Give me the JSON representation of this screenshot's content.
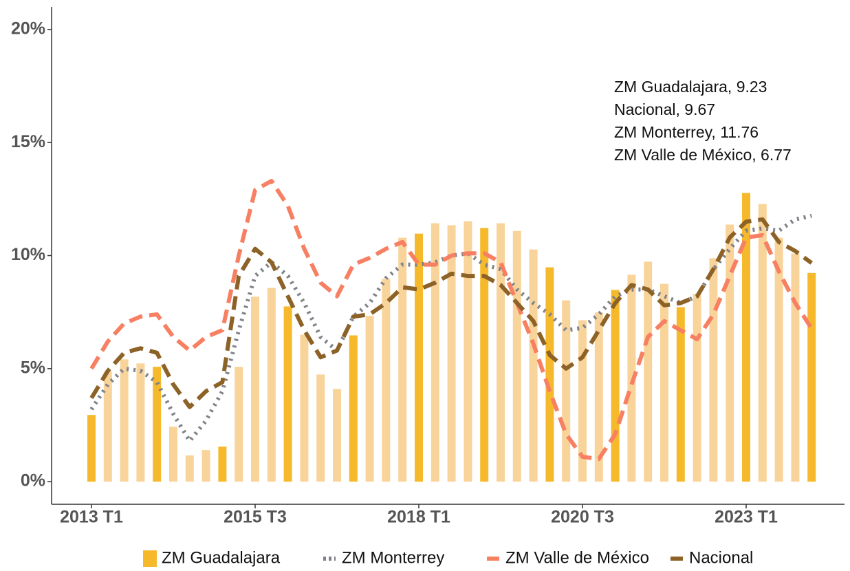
{
  "chart_data": {
    "type": "bar_line",
    "categories": [
      "2013 T1",
      null,
      null,
      null,
      null,
      null,
      null,
      null,
      null,
      null,
      "2015 T3",
      null,
      null,
      null,
      null,
      null,
      null,
      null,
      null,
      null,
      "2018 T1",
      null,
      null,
      null,
      null,
      null,
      null,
      null,
      null,
      null,
      "2020 T3",
      null,
      null,
      null,
      null,
      null,
      null,
      null,
      null,
      null,
      "2023 T1",
      null,
      null,
      null,
      null
    ],
    "series": [
      {
        "name": "ZM Guadalajara",
        "type": "bar",
        "color": "#f6b92b",
        "light_color": "#f9d49a",
        "values": [
          2.95,
          4.86,
          5.41,
          5.23,
          5.08,
          2.43,
          1.16,
          1.4,
          1.55,
          5.08,
          8.18,
          8.57,
          7.75,
          6.5,
          4.74,
          4.1,
          6.47,
          7.33,
          8.97,
          10.79,
          10.97,
          11.43,
          11.34,
          11.52,
          11.22,
          11.43,
          11.09,
          10.27,
          9.48,
          8.02,
          7.14,
          7.48,
          8.48,
          9.15,
          9.73,
          8.75,
          7.72,
          8.3,
          9.88,
          11.37,
          12.77,
          12.28,
          10.79,
          10.09,
          9.23
        ]
      },
      {
        "name": "ZM Monterrey",
        "type": "line",
        "style": "dotted",
        "color": "#7f8389",
        "values": [
          3.2,
          4.3,
          5.0,
          4.9,
          4.4,
          3.0,
          1.8,
          2.7,
          4.0,
          6.7,
          9.1,
          9.7,
          9.1,
          7.9,
          6.4,
          5.8,
          7.3,
          7.9,
          9.0,
          9.6,
          9.6,
          9.7,
          10.0,
          10.1,
          9.6,
          9.4,
          8.5,
          7.9,
          7.4,
          6.7,
          6.8,
          7.4,
          8.2,
          8.5,
          8.5,
          8.2,
          7.9,
          8.2,
          9.4,
          10.3,
          11.1,
          11.2,
          11.1,
          11.6,
          11.76
        ]
      },
      {
        "name": "ZM Valle de México",
        "type": "line",
        "style": "dashed",
        "color": "#f77f62",
        "values": [
          5.0,
          6.2,
          7.0,
          7.3,
          7.4,
          6.4,
          5.8,
          6.4,
          6.7,
          10.0,
          12.9,
          13.3,
          12.2,
          10.3,
          8.8,
          8.2,
          9.6,
          9.9,
          10.3,
          10.6,
          9.6,
          9.6,
          10.0,
          10.1,
          10.1,
          9.7,
          7.9,
          6.1,
          4.0,
          2.1,
          1.1,
          1.0,
          2.1,
          4.3,
          6.4,
          7.1,
          6.7,
          6.3,
          7.4,
          9.1,
          10.8,
          10.9,
          9.3,
          7.9,
          6.77
        ]
      },
      {
        "name": "Nacional",
        "type": "line",
        "style": "dashed",
        "color": "#8c6227",
        "values": [
          3.7,
          4.9,
          5.7,
          5.9,
          5.7,
          4.3,
          3.3,
          4.0,
          4.4,
          9.1,
          10.3,
          9.7,
          8.2,
          6.7,
          5.5,
          5.8,
          7.3,
          7.4,
          7.9,
          8.6,
          8.5,
          8.8,
          9.2,
          9.1,
          9.1,
          8.7,
          7.9,
          7.1,
          5.6,
          5.0,
          5.5,
          6.7,
          7.9,
          8.7,
          8.5,
          7.8,
          7.9,
          8.2,
          9.4,
          10.8,
          11.5,
          11.6,
          10.6,
          10.2,
          9.67
        ]
      }
    ],
    "annotations": [
      "ZM Guadalajara, 9.23",
      "Nacional, 9.67",
      "ZM Monterrey, 11.76",
      "ZM Valle de México, 6.77"
    ],
    "ylim": [
      -1,
      21
    ],
    "yticks": [
      {
        "value": 0,
        "label": "0%"
      },
      {
        "value": 5,
        "label": "5%"
      },
      {
        "value": 10,
        "label": "10%"
      },
      {
        "value": 15,
        "label": "15%"
      },
      {
        "value": 20,
        "label": "20%"
      }
    ],
    "legend": "bottom"
  }
}
